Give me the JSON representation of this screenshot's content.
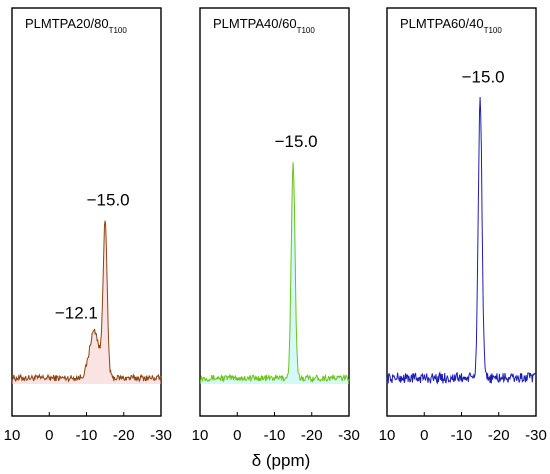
{
  "chart_data": [
    {
      "type": "line",
      "title": "PLMTPA20/80",
      "title_subscript": "T100",
      "xlim": [
        10,
        -30
      ],
      "x_ticks": [
        10,
        0,
        -10,
        -20,
        -30
      ],
      "color": "#8b4513",
      "fill_color": "#f4c2c2",
      "peaks": [
        {
          "x": -12.1,
          "height": 0.22,
          "width": 1.3,
          "label": "−12.1"
        },
        {
          "x": -15.0,
          "height": 0.71,
          "width": 0.55,
          "label": "−15.0"
        }
      ]
    },
    {
      "type": "line",
      "title": "PLMTPA40/60",
      "title_subscript": "T100",
      "xlim": [
        10,
        -30
      ],
      "x_ticks": [
        10,
        0,
        -10,
        -20,
        -30
      ],
      "color": "#6cc31c",
      "fill_color": "#9ff2ea",
      "peaks": [
        {
          "x": -15.0,
          "height": 1.0,
          "width": 0.5,
          "label": "−15.0"
        }
      ]
    },
    {
      "type": "line",
      "title": "PLMTPA60/40",
      "title_subscript": "T100",
      "xlim": [
        10,
        -30
      ],
      "x_ticks": [
        10,
        0,
        -10,
        -20,
        -30
      ],
      "color": "#1e1eb4",
      "fill_color": "",
      "peaks": [
        {
          "x": -15.0,
          "height": 1.3,
          "width": 0.5,
          "label": "−15.0"
        }
      ]
    }
  ],
  "xlabel": "δ (ppm)"
}
